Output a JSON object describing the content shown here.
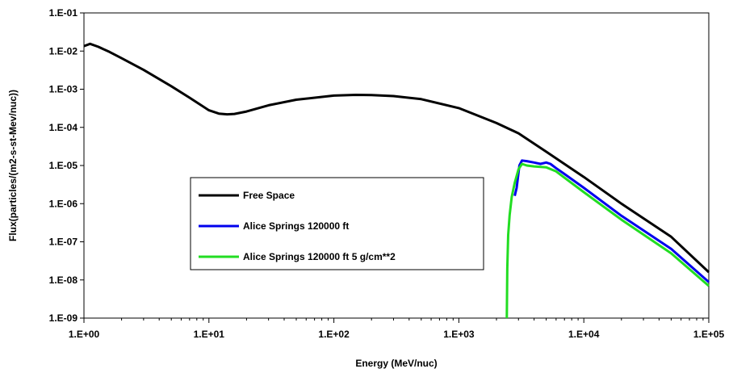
{
  "chart_data": {
    "type": "line",
    "title": "",
    "xlabel": "Energy (MeV/nuc)",
    "ylabel": "Flux(particles/(m2-s-st-Mev/nuc))",
    "x_scale": "log",
    "y_scale": "log",
    "xlim": [
      1,
      100000
    ],
    "ylim": [
      1e-09,
      0.1
    ],
    "x_tick_labels": [
      "1.E+00",
      "1.E+01",
      "1.E+02",
      "1.E+03",
      "1.E+04",
      "1.E+05"
    ],
    "y_tick_labels": [
      "1.E-09",
      "1.E-08",
      "1.E-07",
      "1.E-06",
      "1.E-05",
      "1.E-04",
      "1.E-03",
      "1.E-02",
      "1.E-01"
    ],
    "grid": false,
    "legend_position": "center-left",
    "series": [
      {
        "name": "Free Space",
        "color": "#000000",
        "x": [
          1,
          1.12,
          1.3,
          1.6,
          2,
          3,
          5,
          7,
          10,
          12,
          14,
          16,
          20,
          30,
          50,
          100,
          150,
          200,
          300,
          500,
          1000,
          2000,
          3000,
          5000,
          10000,
          20000,
          50000,
          100000
        ],
        "y": [
          0.0135,
          0.0155,
          0.013,
          0.0095,
          0.0065,
          0.0032,
          0.0012,
          0.0006,
          0.00028,
          0.00023,
          0.00022,
          0.000225,
          0.00026,
          0.00038,
          0.00053,
          0.00068,
          0.00071,
          0.0007,
          0.00066,
          0.00055,
          0.00032,
          0.00013,
          7e-05,
          2.3e-05,
          5e-06,
          1e-06,
          1.35e-07,
          1.6e-08
        ]
      },
      {
        "name": "Alice Springs 120000 ft",
        "color": "#0000ee",
        "x": [
          2800,
          2900,
          3050,
          3200,
          3500,
          4000,
          4500,
          5000,
          5400,
          6000,
          7000,
          10000,
          20000,
          50000,
          100000
        ],
        "y": [
          1.6e-06,
          2.6e-06,
          1e-05,
          1.35e-05,
          1.3e-05,
          1.2e-05,
          1.1e-05,
          1.2e-05,
          1.1e-05,
          8.5e-06,
          6e-06,
          2.6e-06,
          4.8e-07,
          6.5e-08,
          8.8e-09
        ]
      },
      {
        "name": "Alice Springs 120000 ft 5 g/cm**2",
        "color": "#22dd22",
        "x": [
          2420,
          2440,
          2480,
          2550,
          2650,
          2800,
          3000,
          3200,
          3500,
          4000,
          5000,
          6000,
          7000,
          10000,
          20000,
          50000,
          100000
        ],
        "y": [
          1e-09,
          2e-08,
          1.5e-07,
          5e-07,
          1.5e-06,
          3.5e-06,
          8e-06,
          1.1e-05,
          1e-05,
          9.5e-06,
          9e-06,
          7e-06,
          4.8e-06,
          2e-06,
          3.8e-07,
          5e-08,
          7e-09
        ]
      }
    ]
  }
}
